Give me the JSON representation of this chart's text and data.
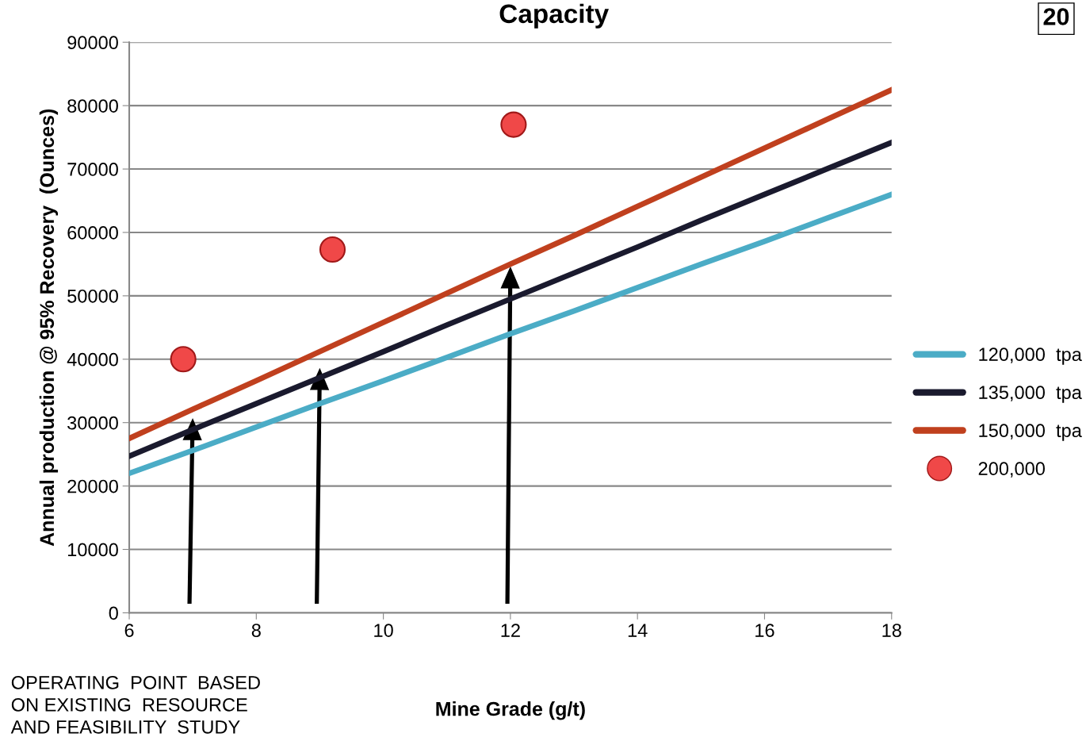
{
  "chart_data": {
    "type": "line",
    "title": "Capacity",
    "xlabel": "Mine Grade (g/t)",
    "ylabel": "Annual production @ 95% Recovery  (Ounces)",
    "x": [
      6,
      7,
      8,
      9,
      10,
      11,
      12,
      13,
      14,
      15,
      16,
      17,
      18
    ],
    "series": [
      {
        "name": "120,000  tpa",
        "color": "#4bacc6",
        "values": [
          22000,
          25600,
          29300,
          33000,
          36600,
          40300,
          44000,
          47600,
          51300,
          55000,
          58600,
          62300,
          66000
        ]
      },
      {
        "name": "135,000  tpa",
        "color": "#1a1a2e",
        "values": [
          24700,
          28900,
          33000,
          37100,
          41200,
          45400,
          49500,
          53600,
          57700,
          61900,
          66000,
          70100,
          74200
        ]
      },
      {
        "name": "150,000  tpa",
        "color": "#c0401e",
        "values": [
          27500,
          32100,
          36600,
          41200,
          45800,
          50400,
          55000,
          59500,
          64100,
          68700,
          73300,
          77900,
          82500
        ]
      },
      {
        "name": "200,000",
        "type": "scatter",
        "color": "#f04848",
        "x": [
          6.85,
          9.2,
          12.05
        ],
        "values": [
          40000,
          57300,
          77000
        ]
      }
    ],
    "xlim": [
      6,
      18
    ],
    "xticks": [
      6,
      8,
      10,
      12,
      14,
      16,
      18
    ],
    "ylim": [
      0,
      90000
    ],
    "yticks": [
      0,
      10000,
      20000,
      30000,
      40000,
      50000,
      60000,
      70000,
      80000,
      90000
    ],
    "grid": "y",
    "legend": "right",
    "line_style": "solid",
    "annotations": [
      "OPERATING  POINT  BASED\nON EXISTING  RESOURCE\nAND FEASIBILITY  STUDY",
      "20"
    ]
  }
}
